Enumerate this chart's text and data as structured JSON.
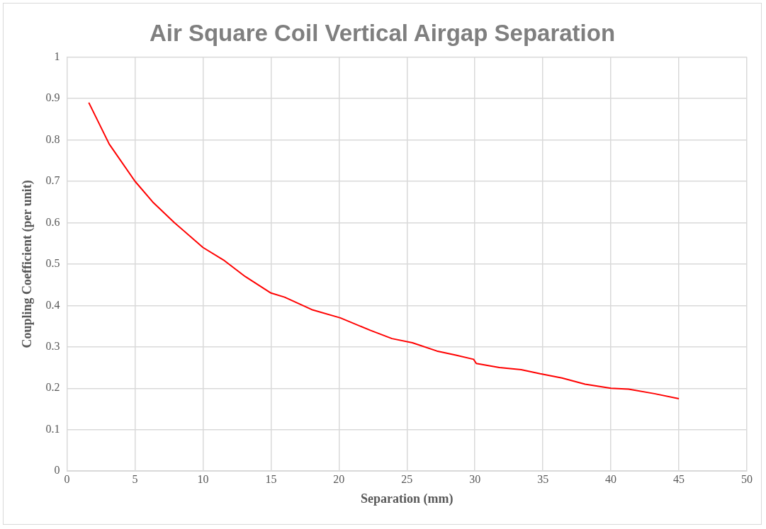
{
  "chart_data": {
    "type": "line",
    "title": "Air Square Coil Vertical Airgap Separation",
    "xlabel": "Separation (mm)",
    "ylabel": "Coupling Coefficient (per unit)",
    "series": [
      {
        "color": "#ff0000",
        "x": [
          1.6,
          3.1,
          5.0,
          6.3,
          7.9,
          10.0,
          11.5,
          13.1,
          15.0,
          16.0,
          18.0,
          20.1,
          22.3,
          23.9,
          25.4,
          27.2,
          28.6,
          29.9,
          30.1,
          31.8,
          33.4,
          34.8,
          36.4,
          38.1,
          40.0,
          41.3,
          43.2,
          45.0
        ],
        "values": [
          0.89,
          0.79,
          0.7,
          0.65,
          0.6,
          0.54,
          0.51,
          0.47,
          0.43,
          0.42,
          0.39,
          0.37,
          0.34,
          0.32,
          0.31,
          0.29,
          0.28,
          0.27,
          0.26,
          0.25,
          0.245,
          0.235,
          0.225,
          0.21,
          0.2,
          0.198,
          0.187,
          0.175
        ]
      }
    ],
    "xlim": [
      0,
      50
    ],
    "xticks": [
      0,
      5,
      10,
      15,
      20,
      25,
      30,
      35,
      40,
      45,
      50
    ],
    "ylim": [
      0,
      1
    ],
    "yticks": [
      0,
      0.1,
      0.2,
      0.3,
      0.4,
      0.5,
      0.6,
      0.7,
      0.8,
      0.9,
      1
    ],
    "grid": true,
    "legend": false,
    "marker": "none",
    "line_style": "solid"
  }
}
